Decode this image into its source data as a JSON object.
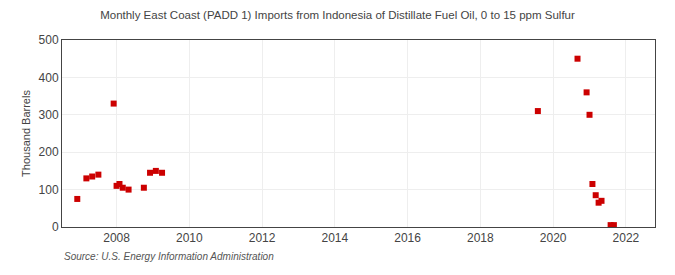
{
  "chart_data": {
    "type": "scatter",
    "title": "Monthly East Coast (PADD 1) Imports from Indonesia of Distillate Fuel Oil, 0 to 15 ppm Sulfur",
    "ylabel": "Thousand Barrels",
    "annotations": [
      "Source: U.S. Energy Information Administration"
    ],
    "color": "#cc0000",
    "marker": "square",
    "grid": true,
    "xlim": [
      2006.5,
      2022.8
    ],
    "ylim": [
      0,
      500
    ],
    "xticks": [
      2008,
      2010,
      2012,
      2014,
      2016,
      2018,
      2020,
      2022
    ],
    "yticks": [
      0,
      100,
      200,
      300,
      400,
      500
    ],
    "x": [
      2006.92,
      2007.17,
      2007.33,
      2007.5,
      2007.92,
      2008.0,
      2008.08,
      2008.17,
      2008.33,
      2008.75,
      2008.92,
      2009.08,
      2009.25,
      2019.58,
      2020.67,
      2020.92,
      2021.0,
      2021.08,
      2021.17,
      2021.25,
      2021.33,
      2021.58,
      2021.67
    ],
    "values": [
      75,
      130,
      135,
      140,
      330,
      110,
      115,
      105,
      100,
      105,
      145,
      150,
      145,
      310,
      450,
      360,
      300,
      115,
      85,
      65,
      70,
      5,
      5
    ]
  }
}
